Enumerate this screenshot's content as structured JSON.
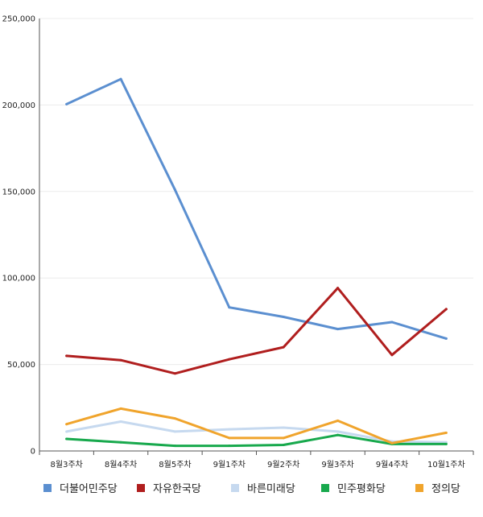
{
  "chart_data": {
    "type": "line",
    "title": "",
    "xlabel": "",
    "ylabel": "",
    "categories": [
      "8월3주차",
      "8월4주차",
      "8월5주차",
      "9월1주차",
      "9월2주차",
      "9월3주차",
      "9월4주차",
      "10월1주차"
    ],
    "ylim": [
      0,
      250000
    ],
    "yticks": [
      0,
      50000,
      100000,
      150000,
      200000,
      250000
    ],
    "ytick_labels": [
      "0",
      "50,000",
      "100,000",
      "150,000",
      "200,000",
      "250,000"
    ],
    "grid": true,
    "legend_position": "bottom",
    "series": [
      {
        "name": "더불어민주당",
        "color": "#5b8fd0",
        "values": [
          200500,
          215000,
          151000,
          83000,
          77500,
          70500,
          74500,
          65000
        ]
      },
      {
        "name": "자유한국당",
        "color": "#b01e1e",
        "values": [
          55000,
          52500,
          44800,
          53000,
          60000,
          94200,
          55500,
          82000
        ]
      },
      {
        "name": "바른미래당",
        "color": "#c6d9ef",
        "values": [
          11200,
          17000,
          11200,
          12500,
          13500,
          11200,
          5500,
          5000
        ]
      },
      {
        "name": "민주평화당",
        "color": "#18a94d",
        "values": [
          7000,
          5000,
          3000,
          3000,
          3500,
          9200,
          4000,
          4000
        ]
      },
      {
        "name": "정의당",
        "color": "#f0a42c",
        "values": [
          15500,
          24500,
          18800,
          7500,
          7500,
          17500,
          4500,
          10500
        ]
      }
    ]
  }
}
